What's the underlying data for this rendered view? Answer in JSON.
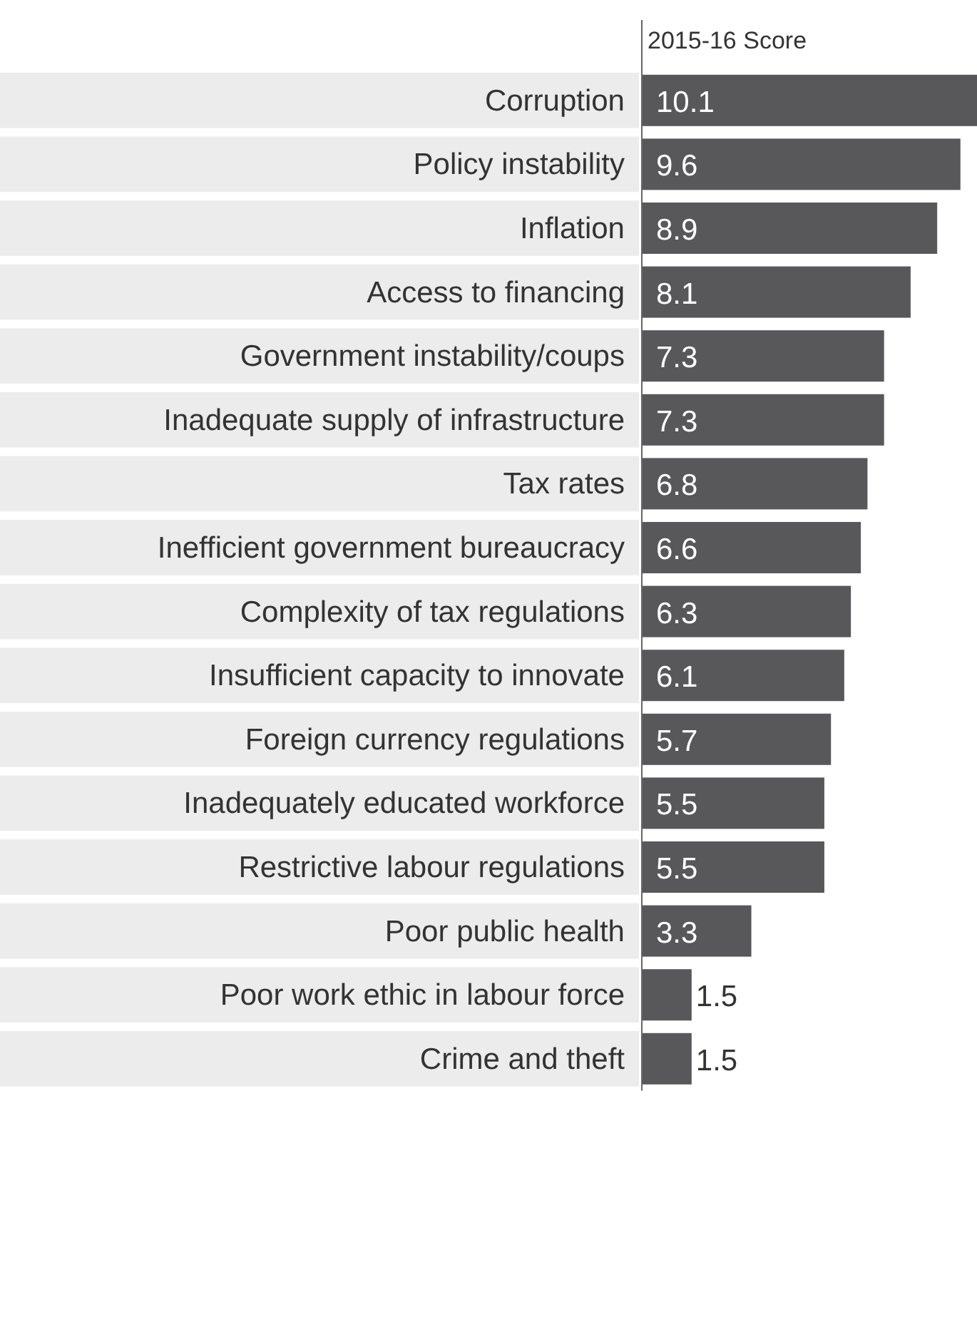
{
  "chart_data": {
    "type": "bar",
    "orientation": "horizontal",
    "title": "2015-16 Score",
    "categories": [
      "Corruption",
      "Policy instability",
      "Inflation",
      "Access to financing",
      "Government instability/coups",
      "Inadequate supply of infrastructure",
      "Tax rates",
      "Inefficient government bureaucracy",
      "Complexity of tax regulations",
      "Insufficient capacity to innovate",
      "Foreign currency regulations",
      "Inadequately educated workforce",
      "Restrictive labour regulations",
      "Poor public health",
      "Poor work ethic in labour force",
      "Crime and theft"
    ],
    "values": [
      10.1,
      9.6,
      8.9,
      8.1,
      7.3,
      7.3,
      6.8,
      6.6,
      6.3,
      6.1,
      5.7,
      5.5,
      5.5,
      3.3,
      1.5,
      1.5
    ],
    "color": "#58585a",
    "data_labels": true
  }
}
